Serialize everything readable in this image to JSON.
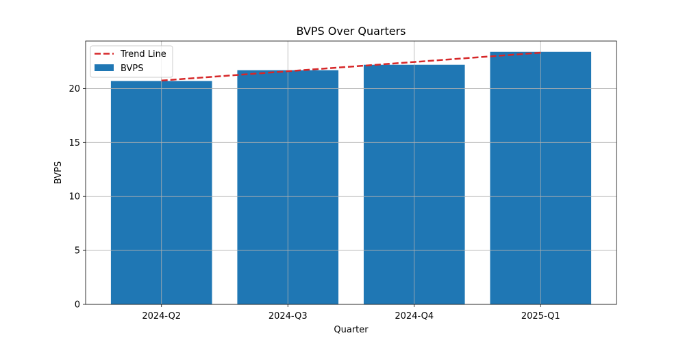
{
  "chart_data": {
    "type": "bar",
    "title": "BVPS Over Quarters",
    "xlabel": "Quarter",
    "ylabel": "BVPS",
    "categories": [
      "2024-Q2",
      "2024-Q3",
      "2024-Q4",
      "2025-Q1"
    ],
    "series": [
      {
        "name": "BVPS",
        "type": "bar",
        "values": [
          20.7,
          21.7,
          22.2,
          23.4
        ],
        "color": "#1f77b4"
      },
      {
        "name": "Trend Line",
        "type": "line",
        "style": "dashed",
        "values": [
          20.74,
          21.6,
          22.46,
          23.32
        ],
        "color": "#d62728"
      }
    ],
    "ylim": [
      0,
      24.4
    ],
    "yticks": [
      0,
      5,
      10,
      15,
      20
    ],
    "grid": true,
    "legend": {
      "position": "top-left",
      "entries": [
        "Trend Line",
        "BVPS"
      ]
    }
  }
}
